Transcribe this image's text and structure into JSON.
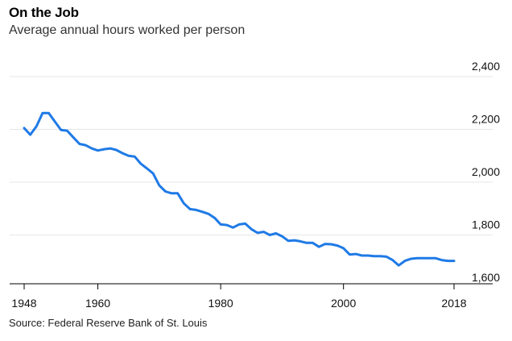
{
  "header": {
    "title": "On the Job",
    "subtitle": "Average annual hours worked per person"
  },
  "footer": {
    "source": "Source: Federal Reserve Bank of St. Louis"
  },
  "colors": {
    "line": "#1f7ae6",
    "grid": "#e6e6e6",
    "axis": "#000000"
  },
  "chart_data": {
    "type": "line",
    "title": "On the Job",
    "subtitle": "Average annual hours worked per person",
    "xlabel": "",
    "ylabel": "",
    "xlim": [
      1948,
      2018
    ],
    "ylim": [
      1600,
      2400
    ],
    "grid": true,
    "y_axis_position": "right",
    "yticks": [
      {
        "value": 1600,
        "label": "1,600"
      },
      {
        "value": 1800,
        "label": "1,800"
      },
      {
        "value": 2000,
        "label": "2,000"
      },
      {
        "value": 2200,
        "label": "2,200"
      },
      {
        "value": 2400,
        "label": "2,400"
      }
    ],
    "xticks": [
      {
        "value": 1948,
        "label": "1948"
      },
      {
        "value": 1960,
        "label": "1960"
      },
      {
        "value": 1980,
        "label": "1980"
      },
      {
        "value": 2000,
        "label": "2000"
      },
      {
        "value": 2018,
        "label": "2018"
      }
    ],
    "series": [
      {
        "x": [
          1948,
          1949,
          1950,
          1951,
          1952,
          1953,
          1954,
          1955,
          1956,
          1957,
          1958,
          1959,
          1960,
          1961,
          1962,
          1963,
          1964,
          1965,
          1966,
          1967,
          1968,
          1969,
          1970,
          1971,
          1972,
          1973,
          1974,
          1975,
          1976,
          1977,
          1978,
          1979,
          1980,
          1981,
          1982,
          1983,
          1984,
          1985,
          1986,
          1987,
          1988,
          1989,
          1990,
          1991,
          1992,
          1993,
          1994,
          1995,
          1996,
          1997,
          1998,
          1999,
          2000,
          2001,
          2002,
          2003,
          2004,
          2005,
          2006,
          2007,
          2008,
          2009,
          2010,
          2011,
          2012,
          2013,
          2014,
          2015,
          2016,
          2017,
          2018
        ],
        "values": [
          2205,
          2180,
          2212,
          2262,
          2262,
          2230,
          2198,
          2195,
          2170,
          2145,
          2140,
          2128,
          2120,
          2125,
          2128,
          2122,
          2110,
          2100,
          2097,
          2070,
          2052,
          2033,
          1988,
          1965,
          1958,
          1958,
          1920,
          1898,
          1895,
          1888,
          1880,
          1865,
          1840,
          1838,
          1828,
          1840,
          1843,
          1822,
          1808,
          1812,
          1800,
          1806,
          1795,
          1778,
          1780,
          1776,
          1770,
          1770,
          1755,
          1766,
          1765,
          1760,
          1750,
          1726,
          1728,
          1722,
          1722,
          1720,
          1720,
          1718,
          1705,
          1685,
          1702,
          1710,
          1712,
          1712,
          1712,
          1712,
          1705,
          1702,
          1702
        ]
      }
    ]
  }
}
